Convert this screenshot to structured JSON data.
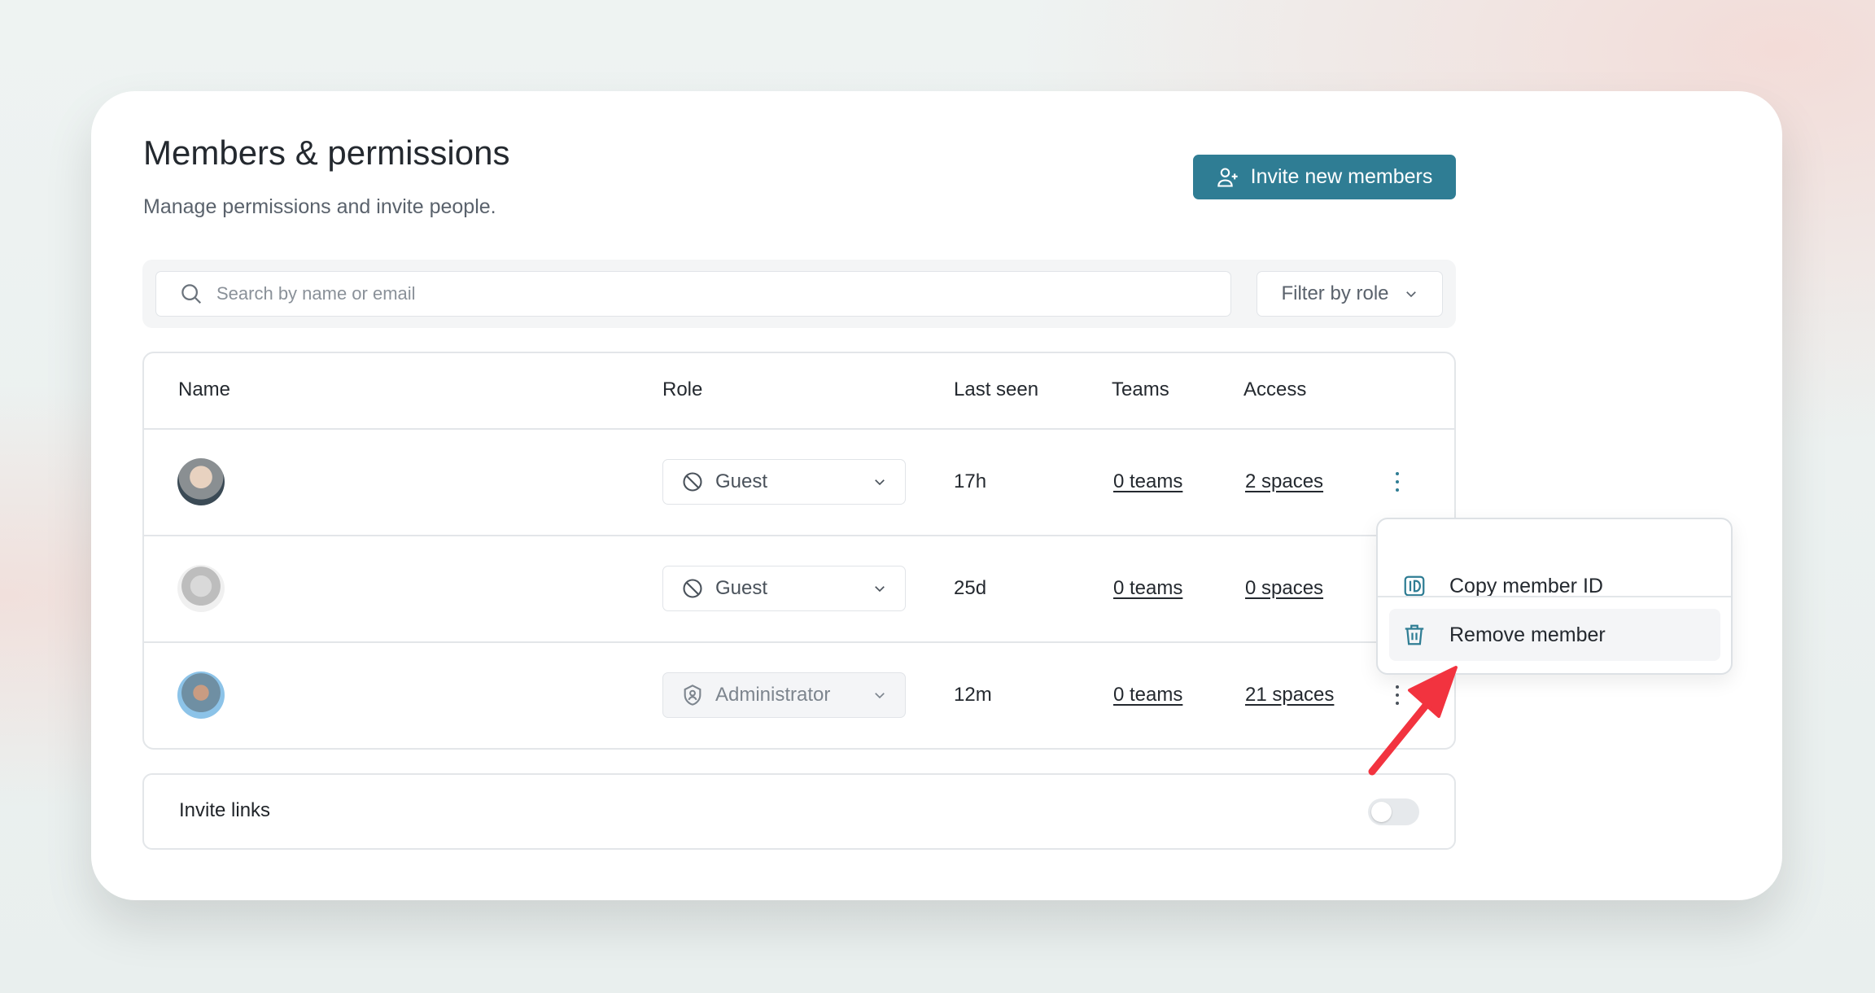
{
  "header": {
    "title": "Members & permissions",
    "subtitle": "Manage permissions and invite people.",
    "invite_label": "Invite new members"
  },
  "search": {
    "placeholder": "Search by name or email",
    "filter_label": "Filter by role"
  },
  "table": {
    "columns": [
      "Name",
      "Role",
      "Last seen",
      "Teams",
      "Access"
    ],
    "rows": [
      {
        "role": "Guest",
        "role_icon": "ban-icon",
        "last_seen": "17h",
        "teams": "0 teams",
        "access": "2 spaces"
      },
      {
        "role": "Guest",
        "role_icon": "ban-icon",
        "last_seen": "25d",
        "teams": "0 teams",
        "access": "0 spaces"
      },
      {
        "role": "Administrator",
        "role_icon": "shield-user-icon",
        "last_seen": "12m",
        "teams": "0 teams",
        "access": "21 spaces"
      }
    ]
  },
  "invite_links": {
    "label": "Invite links",
    "enabled": false
  },
  "context_menu": {
    "items": [
      {
        "label": "Copy member ID",
        "icon": "id-icon"
      },
      {
        "label": "Remove member",
        "icon": "trash-icon",
        "highlighted": true
      }
    ]
  },
  "colors": {
    "accent": "#2f7d94",
    "annotation_arrow": "#f2333f"
  }
}
